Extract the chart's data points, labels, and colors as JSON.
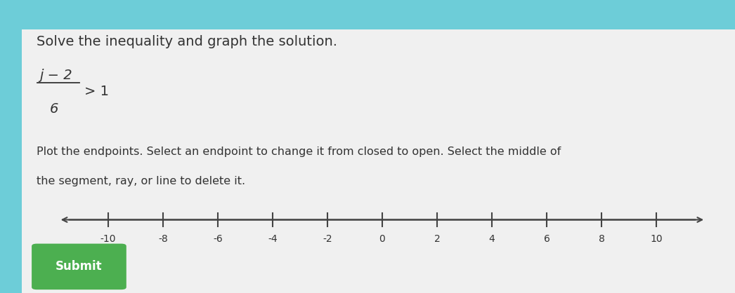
{
  "bg_color": "#6dcdd8",
  "card_color": "#f0f0f0",
  "header_color": "#6dcdd8",
  "title_text": "Solve the inequality and graph the solution.",
  "equation_numerator": "j − 2",
  "equation_denominator": "6",
  "equation_rhs": "> 1",
  "instruction_line1": "Plot the endpoints. Select an endpoint to change it from closed to open. Select the middle of",
  "instruction_line2": "the segment, ray, or line to delete it.",
  "number_line_ticks": [
    -10,
    -8,
    -6,
    -4,
    -2,
    0,
    2,
    4,
    6,
    8,
    10
  ],
  "submit_button_color": "#4caf50",
  "submit_text": "Submit",
  "submit_text_color": "#ffffff",
  "axis_color": "#444444",
  "tick_color": "#444444",
  "font_color": "#333333",
  "font_size_title": 14,
  "font_size_instruction": 11.5,
  "font_size_tick": 10,
  "font_size_eq_num": 14,
  "font_size_eq_den": 14
}
